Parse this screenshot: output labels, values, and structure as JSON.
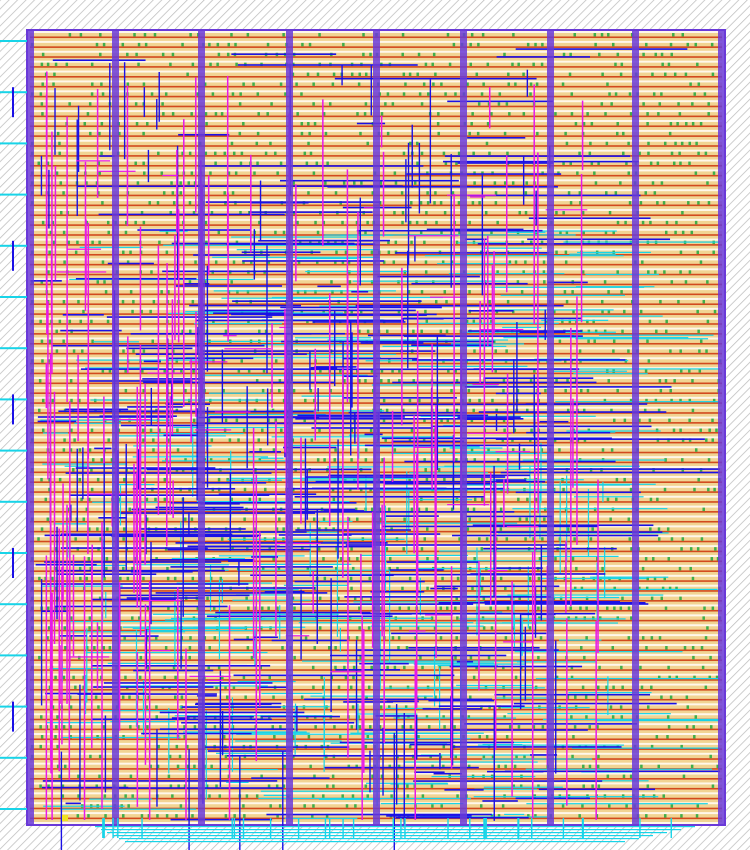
{
  "layout": {
    "layers": [
      {
        "name": "cell-rows",
        "color": "#d24a1e"
      },
      {
        "name": "cell-fill",
        "color": "#e6b84a"
      },
      {
        "name": "green-diffusion",
        "color": "#3fae4a"
      },
      {
        "name": "metal1-blue",
        "color": "#1a10e6"
      },
      {
        "name": "metal2-cyan",
        "color": "#18d4e8"
      },
      {
        "name": "metal3-magenta",
        "color": "#e818e8"
      },
      {
        "name": "power-straps",
        "color": "#6a3ad8"
      },
      {
        "name": "halo-hatch",
        "color": "#bdbdbd"
      }
    ],
    "pins_left_count": 16,
    "power_strap_count": 9,
    "cell_row_count": 80
  }
}
